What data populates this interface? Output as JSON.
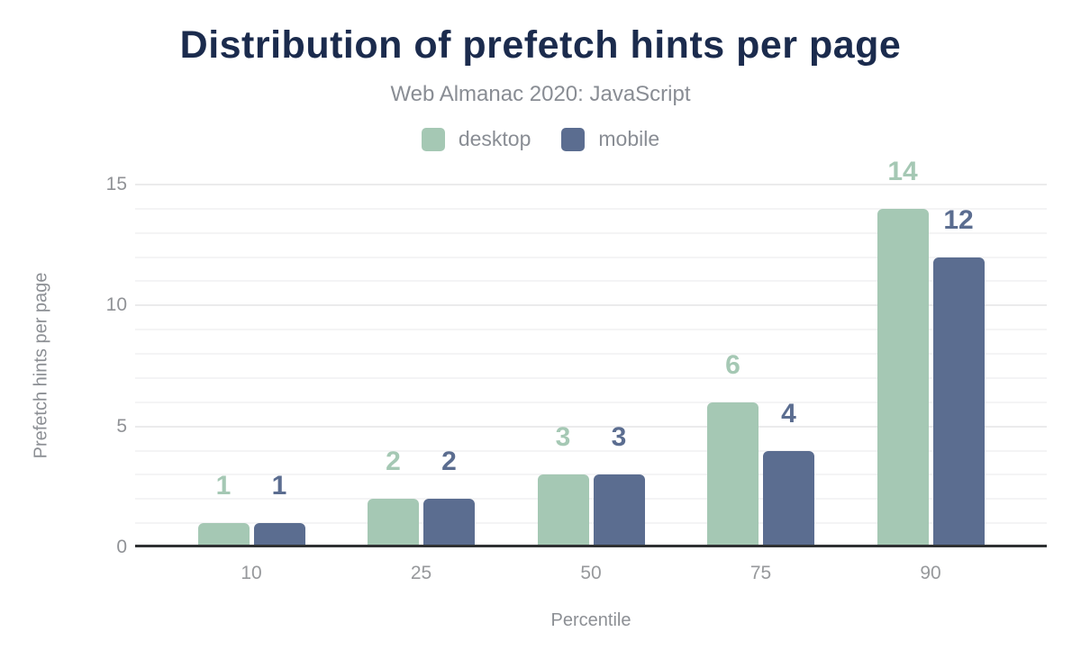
{
  "chart_data": {
    "type": "bar",
    "title": "Distribution of prefetch hints per page",
    "subtitle": "Web Almanac 2020: JavaScript",
    "categories": [
      "10",
      "25",
      "50",
      "75",
      "90"
    ],
    "series": [
      {
        "name": "desktop",
        "color": "#a5c8b4",
        "values": [
          1,
          2,
          3,
          6,
          14
        ]
      },
      {
        "name": "mobile",
        "color": "#5b6d90",
        "values": [
          1,
          2,
          3,
          4,
          12
        ]
      }
    ],
    "xlabel": "Percentile",
    "ylabel": "Prefetch hints per page",
    "ylim": [
      0,
      15
    ],
    "yticks": [
      0,
      5,
      10,
      15
    ],
    "grid": {
      "orientation": "horizontal",
      "minor_step": 1,
      "major_step": 5
    },
    "legend_position": "top",
    "value_labels": true
  },
  "colors": {
    "background": "#ffffff",
    "title_text": "#1b2b4d",
    "subtitle_text": "#898d94",
    "tick_text": "#909296",
    "axis_line": "#2f3133",
    "grid_minor": "#f4f4f5",
    "grid_major": "#ebebec"
  }
}
